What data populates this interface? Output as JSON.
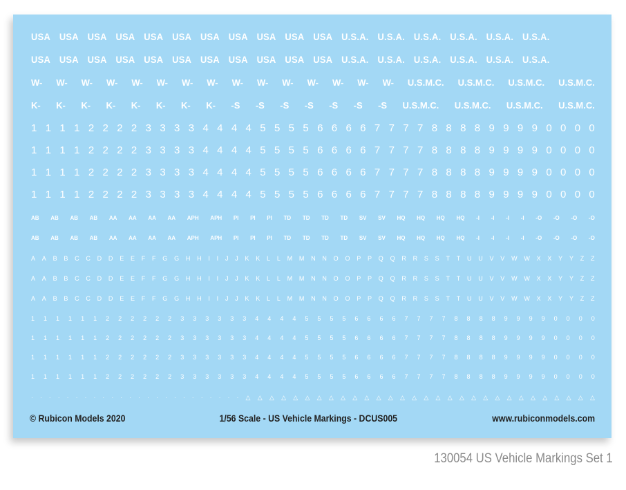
{
  "sheet": {
    "background_color": "#a3d8f5",
    "marking_color": "#ffffff",
    "rows": [
      [
        "USA",
        "USA",
        "USA",
        "USA",
        "USA",
        "USA",
        "USA",
        "USA",
        "USA",
        "USA",
        "USA",
        "U.S.A.",
        "U.S.A.",
        "U.S.A.",
        "U.S.A.",
        "U.S.A.",
        "U.S.A."
      ],
      [
        "USA",
        "USA",
        "USA",
        "USA",
        "USA",
        "USA",
        "USA",
        "USA",
        "USA",
        "USA",
        "USA",
        "U.S.A.",
        "U.S.A.",
        "U.S.A.",
        "U.S.A.",
        "U.S.A.",
        "U.S.A."
      ],
      [
        "W-",
        "W-",
        "W-",
        "W-",
        "W-",
        "W-",
        "W-",
        "W-",
        "W-",
        "W-",
        "W-",
        "W-",
        "W-",
        "W-",
        "W-",
        "U.S.M.C.",
        "U.S.M.C.",
        "U.S.M.C.",
        "U.S.M.C."
      ],
      [
        "K-",
        "K-",
        "K-",
        "K-",
        "K-",
        "K-",
        "K-",
        "K-",
        "-S",
        "-S",
        "-S",
        "-S",
        "-S",
        "-S",
        "-S",
        "U.S.M.C.",
        "U.S.M.C.",
        "U.S.M.C.",
        "U.S.M.C."
      ],
      [
        "1",
        "1",
        "1",
        "1",
        "2",
        "2",
        "2",
        "2",
        "3",
        "3",
        "3",
        "3",
        "4",
        "4",
        "4",
        "4",
        "5",
        "5",
        "5",
        "5",
        "6",
        "6",
        "6",
        "6",
        "7",
        "7",
        "7",
        "7",
        "8",
        "8",
        "8",
        "8",
        "9",
        "9",
        "9",
        "9",
        "0",
        "0",
        "0",
        "0"
      ],
      [
        "1",
        "1",
        "1",
        "1",
        "2",
        "2",
        "2",
        "2",
        "3",
        "3",
        "3",
        "3",
        "4",
        "4",
        "4",
        "4",
        "5",
        "5",
        "5",
        "5",
        "6",
        "6",
        "6",
        "6",
        "7",
        "7",
        "7",
        "7",
        "8",
        "8",
        "8",
        "8",
        "9",
        "9",
        "9",
        "9",
        "0",
        "0",
        "0",
        "0"
      ],
      [
        "1",
        "1",
        "1",
        "1",
        "2",
        "2",
        "2",
        "2",
        "3",
        "3",
        "3",
        "3",
        "4",
        "4",
        "4",
        "4",
        "5",
        "5",
        "5",
        "5",
        "6",
        "6",
        "6",
        "6",
        "7",
        "7",
        "7",
        "7",
        "8",
        "8",
        "8",
        "8",
        "9",
        "9",
        "9",
        "9",
        "0",
        "0",
        "0",
        "0"
      ],
      [
        "1",
        "1",
        "1",
        "1",
        "2",
        "2",
        "2",
        "2",
        "3",
        "3",
        "3",
        "3",
        "4",
        "4",
        "4",
        "4",
        "5",
        "5",
        "5",
        "5",
        "6",
        "6",
        "6",
        "6",
        "7",
        "7",
        "7",
        "7",
        "8",
        "8",
        "8",
        "8",
        "9",
        "9",
        "9",
        "9",
        "0",
        "0",
        "0",
        "0"
      ],
      [
        "AB",
        "AB",
        "AB",
        "AB",
        "AA",
        "AA",
        "AA",
        "AA",
        "APH",
        "APH",
        "PI",
        "PI",
        "PI",
        "TD",
        "TD",
        "TD",
        "TD",
        "SV",
        "SV",
        "HQ",
        "HQ",
        "HQ",
        "HQ",
        "-I",
        "-I",
        "-I",
        "-I",
        "-O",
        "-O",
        "-O",
        "-O"
      ],
      [
        "AB",
        "AB",
        "AB",
        "AB",
        "AA",
        "AA",
        "AA",
        "AA",
        "APH",
        "APH",
        "PI",
        "PI",
        "PI",
        "TD",
        "TD",
        "TD",
        "TD",
        "SV",
        "SV",
        "HQ",
        "HQ",
        "HQ",
        "HQ",
        "-I",
        "-I",
        "-I",
        "-I",
        "-O",
        "-O",
        "-O",
        "-O"
      ],
      [
        "A",
        "A",
        "B",
        "B",
        "C",
        "C",
        "D",
        "D",
        "E",
        "E",
        "F",
        "F",
        "G",
        "G",
        "H",
        "H",
        "I",
        "I",
        "J",
        "J",
        "K",
        "K",
        "L",
        "L",
        "M",
        "M",
        "N",
        "N",
        "O",
        "O",
        "P",
        "P",
        "Q",
        "Q",
        "R",
        "R",
        "S",
        "S",
        "T",
        "T",
        "U",
        "U",
        "V",
        "V",
        "W",
        "W",
        "X",
        "X",
        "Y",
        "Y",
        "Z",
        "Z"
      ],
      [
        "A",
        "A",
        "B",
        "B",
        "C",
        "C",
        "D",
        "D",
        "E",
        "E",
        "F",
        "F",
        "G",
        "G",
        "H",
        "H",
        "I",
        "I",
        "J",
        "J",
        "K",
        "K",
        "L",
        "L",
        "M",
        "M",
        "N",
        "N",
        "O",
        "O",
        "P",
        "P",
        "Q",
        "Q",
        "R",
        "R",
        "S",
        "S",
        "T",
        "T",
        "U",
        "U",
        "V",
        "V",
        "W",
        "W",
        "X",
        "X",
        "Y",
        "Y",
        "Z",
        "Z"
      ],
      [
        "A",
        "A",
        "B",
        "B",
        "C",
        "C",
        "D",
        "D",
        "E",
        "E",
        "F",
        "F",
        "G",
        "G",
        "H",
        "H",
        "I",
        "I",
        "J",
        "J",
        "K",
        "K",
        "L",
        "L",
        "M",
        "M",
        "N",
        "N",
        "O",
        "O",
        "P",
        "P",
        "Q",
        "Q",
        "R",
        "R",
        "S",
        "S",
        "T",
        "T",
        "U",
        "U",
        "V",
        "V",
        "W",
        "W",
        "X",
        "X",
        "Y",
        "Y",
        "Z",
        "Z"
      ],
      [
        "1",
        "1",
        "1",
        "1",
        "1",
        "1",
        "2",
        "2",
        "2",
        "2",
        "2",
        "2",
        "3",
        "3",
        "3",
        "3",
        "3",
        "3",
        "4",
        "4",
        "4",
        "4",
        "5",
        "5",
        "5",
        "5",
        "6",
        "6",
        "6",
        "6",
        "7",
        "7",
        "7",
        "7",
        "8",
        "8",
        "8",
        "8",
        "9",
        "9",
        "9",
        "9",
        "0",
        "0",
        "0",
        "0"
      ],
      [
        "1",
        "1",
        "1",
        "1",
        "1",
        "1",
        "2",
        "2",
        "2",
        "2",
        "2",
        "2",
        "3",
        "3",
        "3",
        "3",
        "3",
        "3",
        "4",
        "4",
        "4",
        "4",
        "5",
        "5",
        "5",
        "5",
        "6",
        "6",
        "6",
        "6",
        "7",
        "7",
        "7",
        "7",
        "8",
        "8",
        "8",
        "8",
        "9",
        "9",
        "9",
        "9",
        "0",
        "0",
        "0",
        "0"
      ],
      [
        "1",
        "1",
        "1",
        "1",
        "1",
        "1",
        "2",
        "2",
        "2",
        "2",
        "2",
        "2",
        "3",
        "3",
        "3",
        "3",
        "3",
        "3",
        "4",
        "4",
        "4",
        "4",
        "5",
        "5",
        "5",
        "5",
        "6",
        "6",
        "6",
        "6",
        "7",
        "7",
        "7",
        "7",
        "8",
        "8",
        "8",
        "8",
        "9",
        "9",
        "9",
        "9",
        "0",
        "0",
        "0",
        "0"
      ],
      [
        "1",
        "1",
        "1",
        "1",
        "1",
        "1",
        "2",
        "2",
        "2",
        "2",
        "2",
        "2",
        "3",
        "3",
        "3",
        "3",
        "3",
        "3",
        "4",
        "4",
        "4",
        "4",
        "5",
        "5",
        "5",
        "5",
        "6",
        "6",
        "6",
        "6",
        "7",
        "7",
        "7",
        "7",
        "8",
        "8",
        "8",
        "8",
        "9",
        "9",
        "9",
        "9",
        "0",
        "0",
        "0",
        "0"
      ],
      [
        "·",
        "·",
        "·",
        "·",
        "·",
        "·",
        "·",
        "·",
        "·",
        "·",
        "·",
        "·",
        "·",
        "·",
        "·",
        "·",
        "·",
        "·",
        "·",
        "·",
        "·",
        "·",
        "·",
        "·",
        "△",
        "△",
        "△",
        "△",
        "△",
        "△",
        "△",
        "△",
        "△",
        "△",
        "△",
        "△",
        "△",
        "△",
        "△",
        "△",
        "△",
        "△",
        "△",
        "△",
        "△",
        "△",
        "△",
        "△",
        "△",
        "△",
        "△",
        "△",
        "△",
        "△"
      ]
    ]
  },
  "footer": {
    "copyright": "© Rubicon Models 2020",
    "title": "1/56 Scale - US Vehicle Markings - DCUS005",
    "website": "www.rubiconmodels.com",
    "text_color": "#222222"
  },
  "caption": {
    "text": "130054  US Vehicle Markings Set 1",
    "color": "#8a8a8a"
  }
}
